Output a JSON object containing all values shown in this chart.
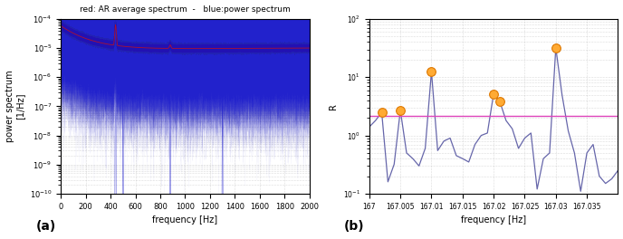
{
  "left_title": "red: AR average spectrum  -   blue:power spectrum",
  "left_xlabel": "frequency [Hz]",
  "left_ylabel": "power spectrum\n[1/Hz]",
  "left_xlim": [
    0,
    2000
  ],
  "left_xticks": [
    0,
    200,
    400,
    600,
    800,
    1000,
    1200,
    1400,
    1600,
    1800,
    2000
  ],
  "right_xlabel": "frequency [Hz]",
  "right_ylabel": "R",
  "right_xlim": [
    167.0,
    167.04
  ],
  "right_xticks": [
    167.0,
    167.005,
    167.01,
    167.015,
    167.02,
    167.025,
    167.03,
    167.035
  ],
  "right_xtick_labels": [
    "167",
    "167.005",
    "167.01",
    "167.015",
    "167.02",
    "167.025",
    "167.03",
    "167.035"
  ],
  "label_a": "(a)",
  "label_b": "(b)",
  "bg_color": "#ffffff",
  "blue_color": "#2222cc",
  "red_color": "#cc1111",
  "line_color": "#6666aa",
  "threshold_color": "#dd44bb",
  "threshold_value": 2.2,
  "marker_color": "#ffaa33",
  "marker_edge_color": "#dd7700",
  "freq_b": [
    167.0,
    167.001,
    167.002,
    167.003,
    167.004,
    167.005,
    167.006,
    167.007,
    167.008,
    167.009,
    167.01,
    167.011,
    167.012,
    167.013,
    167.014,
    167.015,
    167.016,
    167.017,
    167.018,
    167.019,
    167.02,
    167.021,
    167.022,
    167.023,
    167.024,
    167.025,
    167.026,
    167.027,
    167.028,
    167.029,
    167.03,
    167.031,
    167.032,
    167.033,
    167.034,
    167.035,
    167.036,
    167.037,
    167.038,
    167.039,
    167.04
  ],
  "R_vals": [
    1.4,
    1.8,
    2.5,
    0.16,
    0.32,
    2.7,
    0.5,
    0.4,
    0.3,
    0.6,
    12.5,
    0.55,
    0.8,
    0.9,
    0.45,
    0.4,
    0.35,
    0.7,
    1.0,
    1.1,
    5.2,
    3.8,
    1.8,
    1.3,
    0.6,
    0.9,
    1.1,
    0.12,
    0.4,
    0.5,
    32.0,
    5.0,
    1.2,
    0.5,
    0.11,
    0.5,
    0.7,
    0.2,
    0.15,
    0.18,
    0.25
  ],
  "peak_freqs": [
    167.002,
    167.005,
    167.01,
    167.02,
    167.021,
    167.03
  ],
  "peak_vals": [
    2.5,
    2.7,
    12.5,
    5.2,
    3.8,
    32.0
  ]
}
